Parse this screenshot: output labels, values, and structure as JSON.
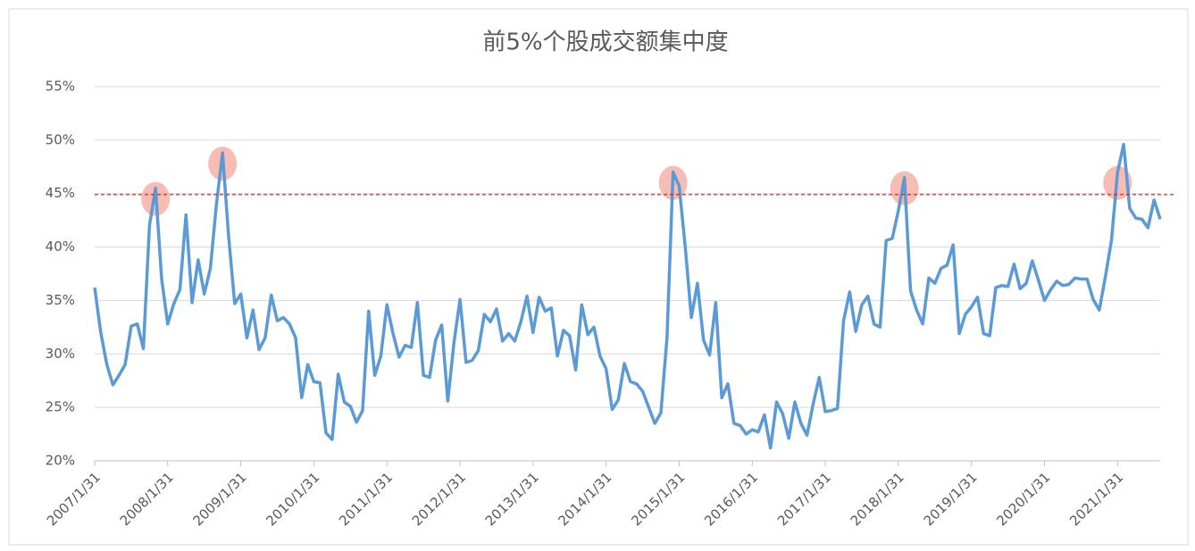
{
  "chart_data": {
    "type": "line",
    "title": "前5%个股成交额集中度",
    "categories": [
      "2007/1/31",
      null,
      null,
      null,
      null,
      null,
      null,
      null,
      null,
      null,
      null,
      null,
      "2008/1/31",
      null,
      null,
      null,
      null,
      null,
      null,
      null,
      null,
      null,
      null,
      null,
      "2009/1/31",
      null,
      null,
      null,
      null,
      null,
      null,
      null,
      null,
      null,
      null,
      null,
      "2010/1/31",
      null,
      null,
      null,
      null,
      null,
      null,
      null,
      null,
      null,
      null,
      null,
      "2011/1/31",
      null,
      null,
      null,
      null,
      null,
      null,
      null,
      null,
      null,
      null,
      null,
      "2012/1/31",
      null,
      null,
      null,
      null,
      null,
      null,
      null,
      null,
      null,
      null,
      null,
      "2013/1/31",
      null,
      null,
      null,
      null,
      null,
      null,
      null,
      null,
      null,
      null,
      null,
      "2014/1/31",
      null,
      null,
      null,
      null,
      null,
      null,
      null,
      null,
      null,
      null,
      null,
      "2015/1/31",
      null,
      null,
      null,
      null,
      null,
      null,
      null,
      null,
      null,
      null,
      null,
      "2016/1/31",
      null,
      null,
      null,
      null,
      null,
      null,
      null,
      null,
      null,
      null,
      null,
      "2017/1/31",
      null,
      null,
      null,
      null,
      null,
      null,
      null,
      null,
      null,
      null,
      null,
      "2018/1/31",
      null,
      null,
      null,
      null,
      null,
      null,
      null,
      null,
      null,
      null,
      null,
      "2019/1/31",
      null,
      null,
      null,
      null,
      null,
      null,
      null,
      null,
      null,
      null,
      null,
      "2020/1/31",
      null,
      null,
      null,
      null,
      null,
      null,
      null,
      null,
      null,
      null,
      null,
      "2021/1/31",
      null,
      null,
      null,
      null,
      null,
      null,
      null
    ],
    "values": [
      36.2,
      32,
      29,
      27.1,
      28,
      29,
      32.6,
      32.8,
      30.5,
      42,
      45.5,
      37,
      32.8,
      34.7,
      36,
      43,
      34.8,
      38.8,
      35.6,
      38,
      44,
      48.8,
      41,
      34.7,
      35.6,
      31.5,
      34.1,
      30.4,
      31.5,
      35.5,
      33.1,
      33.4,
      32.8,
      31.5,
      25.9,
      29,
      27.4,
      27.3,
      22.6,
      22,
      28.1,
      25.5,
      25.1,
      23.6,
      24.7,
      34,
      28,
      29.8,
      34.6,
      31.9,
      29.7,
      30.8,
      30.6,
      34.8,
      28,
      27.8,
      31.3,
      32.7,
      25.6,
      31,
      35.1,
      29.2,
      29.4,
      30.3,
      33.7,
      33,
      34.2,
      31.2,
      31.9,
      31.2,
      33,
      35.4,
      32,
      35.3,
      34,
      34.3,
      29.8,
      32.2,
      31.7,
      28.5,
      34.6,
      31.8,
      32.5,
      29.8,
      28.6,
      24.8,
      25.7,
      29.1,
      27.4,
      27.2,
      26.5,
      25,
      23.5,
      24.5,
      31.5,
      47,
      45.7,
      40,
      33.4,
      36.6,
      31.3,
      29.9,
      34.8,
      25.9,
      27.2,
      23.5,
      23.3,
      22.5,
      22.9,
      22.7,
      24.3,
      21.2,
      25.5,
      24.4,
      22.1,
      25.5,
      23.5,
      22.4,
      25.3,
      27.8,
      24.6,
      24.7,
      24.9,
      33.1,
      35.8,
      32.1,
      34.6,
      35.4,
      32.8,
      32.5,
      40.6,
      40.8,
      43.4,
      46.5,
      35.9,
      34.1,
      32.8,
      37.1,
      36.6,
      38,
      38.3,
      40.2,
      31.9,
      33.7,
      34.4,
      35.3,
      31.9,
      31.7,
      36.2,
      36.4,
      36.3,
      38.4,
      36.1,
      36.6,
      38.7,
      36.9,
      35,
      36,
      36.8,
      36.4,
      36.5,
      37.1,
      37,
      37,
      35.1,
      34.1,
      37.2,
      40.6,
      47,
      49.6,
      43.6,
      42.7,
      42.6,
      41.8,
      44.4,
      42.6
    ],
    "color": "#5b9bd5",
    "threshold": 44.9,
    "threshold_color": "#e02020",
    "highlights": [
      10,
      21,
      95,
      133,
      168
    ],
    "highlight_color": "#f4a59a",
    "ylim": [
      20,
      55
    ],
    "yticks": [
      {
        "value": 20,
        "label": "20%"
      },
      {
        "value": 25,
        "label": "25%"
      },
      {
        "value": 30,
        "label": "30%"
      },
      {
        "value": 35,
        "label": "35%"
      },
      {
        "value": 40,
        "label": "40%"
      },
      {
        "value": 45,
        "label": "45%"
      },
      {
        "value": 50,
        "label": "50%"
      },
      {
        "value": 55,
        "label": "55%"
      }
    ],
    "grid": true
  }
}
